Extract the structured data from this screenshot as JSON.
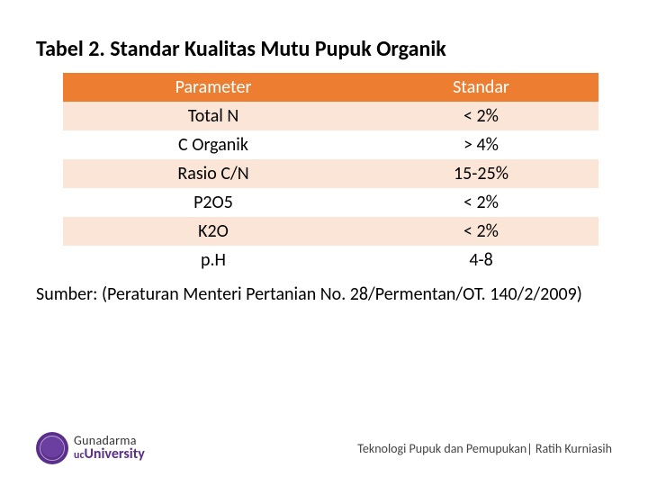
{
  "title": "Tabel 2. Standar Kualitas Mutu Pupuk Organik",
  "table": {
    "type": "table",
    "header_bg": "#ed7d31",
    "header_text_color": "#ffffff",
    "row_odd_bg": "#fbe5d6",
    "row_even_bg": "#ffffff",
    "cell_text_color": "#000000",
    "font_size": 20,
    "columns": [
      "Parameter",
      "Standar"
    ],
    "rows": [
      [
        "Total N",
        "< 2%"
      ],
      [
        "C Organik",
        "> 4%"
      ],
      [
        "Rasio C/N",
        "15-25%"
      ],
      [
        "P2O5",
        "< 2%"
      ],
      [
        "K2O",
        "< 2%"
      ],
      [
        "p.H",
        "4-8"
      ]
    ]
  },
  "source": "Sumber: (Peraturan Menteri Pertanian No. 28/Permentan/OT. 140/2/2009)",
  "logo": {
    "line1": "Gunadarma",
    "line2_prefix": "uc",
    "line2": "University",
    "badge_color": "#5a2f8c"
  },
  "footer_text": "Teknologi Pupuk dan Pemupukan| Ratih Kurniasih"
}
